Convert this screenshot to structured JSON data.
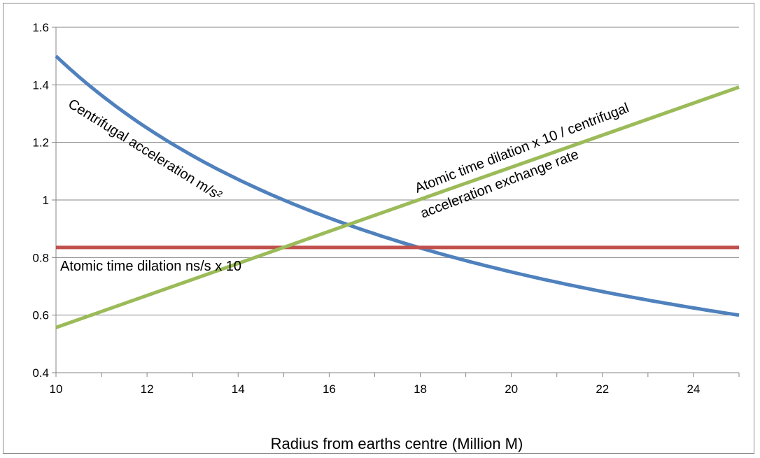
{
  "chart_data": {
    "type": "line",
    "xlabel": "Radius from earths centre (Million M)",
    "ylabel": "",
    "xlim": [
      10,
      25
    ],
    "ylim": [
      0.4,
      1.6
    ],
    "xticks": [
      10,
      12,
      14,
      16,
      18,
      20,
      22,
      24
    ],
    "yticks": [
      0.4,
      0.6,
      0.8,
      1,
      1.2,
      1.4,
      1.6
    ],
    "grid": "horizontal",
    "colors": {
      "centrifugal": "#4f81bd",
      "dilation": "#c0504d",
      "ratio": "#9bbb59"
    },
    "series": [
      {
        "key": "centrifugal",
        "label": "Centrifugal acceleration m/s²",
        "x": [
          10,
          11,
          12,
          13,
          14,
          15,
          16,
          17,
          18,
          19,
          20,
          21,
          22,
          23,
          24,
          25
        ],
        "values": [
          1.5,
          1.364,
          1.25,
          1.154,
          1.071,
          1.0,
          0.938,
          0.882,
          0.833,
          0.789,
          0.75,
          0.714,
          0.682,
          0.652,
          0.625,
          0.6
        ]
      },
      {
        "key": "dilation",
        "label": "Atomic time dilation ns/s x 10",
        "x": [
          10,
          25
        ],
        "values": [
          0.835,
          0.835
        ]
      },
      {
        "key": "ratio",
        "label_line1": "Atomic time dilation x 10 / centrifugal",
        "label_line2": "acceleration exchange rate",
        "x": [
          10,
          25
        ],
        "values": [
          0.557,
          1.392
        ]
      }
    ]
  }
}
